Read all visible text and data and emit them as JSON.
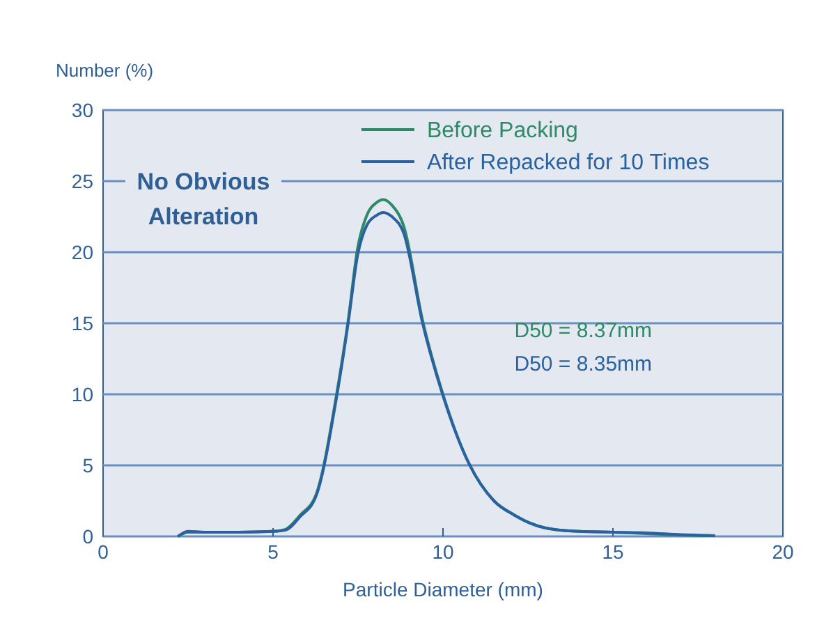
{
  "chart_data": {
    "type": "line",
    "xlabel": "Particle Diameter (mm)",
    "ylabel": "Number (%)",
    "xlim": [
      0,
      20
    ],
    "ylim": [
      0,
      30
    ],
    "xticks": [
      0,
      5,
      10,
      15,
      20
    ],
    "yticks": [
      0,
      5,
      10,
      15,
      20,
      25,
      30
    ],
    "grid": "y",
    "legend": "top",
    "line_style": "solid",
    "marker": "none",
    "annotations": [
      "No Obvious Alteration",
      "D50 = 8.37mm",
      "D50 = 8.35mm"
    ],
    "series": [
      {
        "name": "Before Packing",
        "color": "#2e8a66",
        "x": [
          2.2,
          2.5,
          3,
          4,
          5,
          5.37,
          5.8,
          6.26,
          6.87,
          7.21,
          7.49,
          7.76,
          8.05,
          8.24,
          8.5,
          8.85,
          9.4,
          10,
          10.77,
          11.5,
          12.1,
          13,
          14,
          15,
          16,
          17,
          18
        ],
        "values": [
          0,
          0.3,
          0.3,
          0.3,
          0.35,
          0.5,
          1.5,
          2.9,
          10,
          15.2,
          20.3,
          22.6,
          23.5,
          23.7,
          23.3,
          21.8,
          15.2,
          10,
          5.1,
          2.5,
          1.5,
          0.6,
          0.35,
          0.3,
          0.2,
          0.1,
          0.05
        ]
      },
      {
        "name": "After Repacked for 10 Times",
        "color": "#2a62a0",
        "x": [
          2.2,
          2.5,
          3,
          4,
          5,
          5.37,
          5.8,
          6.26,
          6.87,
          7.21,
          7.49,
          7.76,
          8.05,
          8.24,
          8.5,
          8.85,
          9.4,
          10,
          10.77,
          11.5,
          12.1,
          13,
          14,
          15,
          16,
          17,
          18
        ],
        "values": [
          0,
          0.35,
          0.3,
          0.3,
          0.35,
          0.45,
          1.4,
          2.8,
          9.8,
          15,
          19.8,
          21.9,
          22.6,
          22.8,
          22.5,
          21.3,
          15,
          9.9,
          5.1,
          2.5,
          1.5,
          0.6,
          0.35,
          0.3,
          0.25,
          0.12,
          0.05
        ]
      }
    ]
  }
}
